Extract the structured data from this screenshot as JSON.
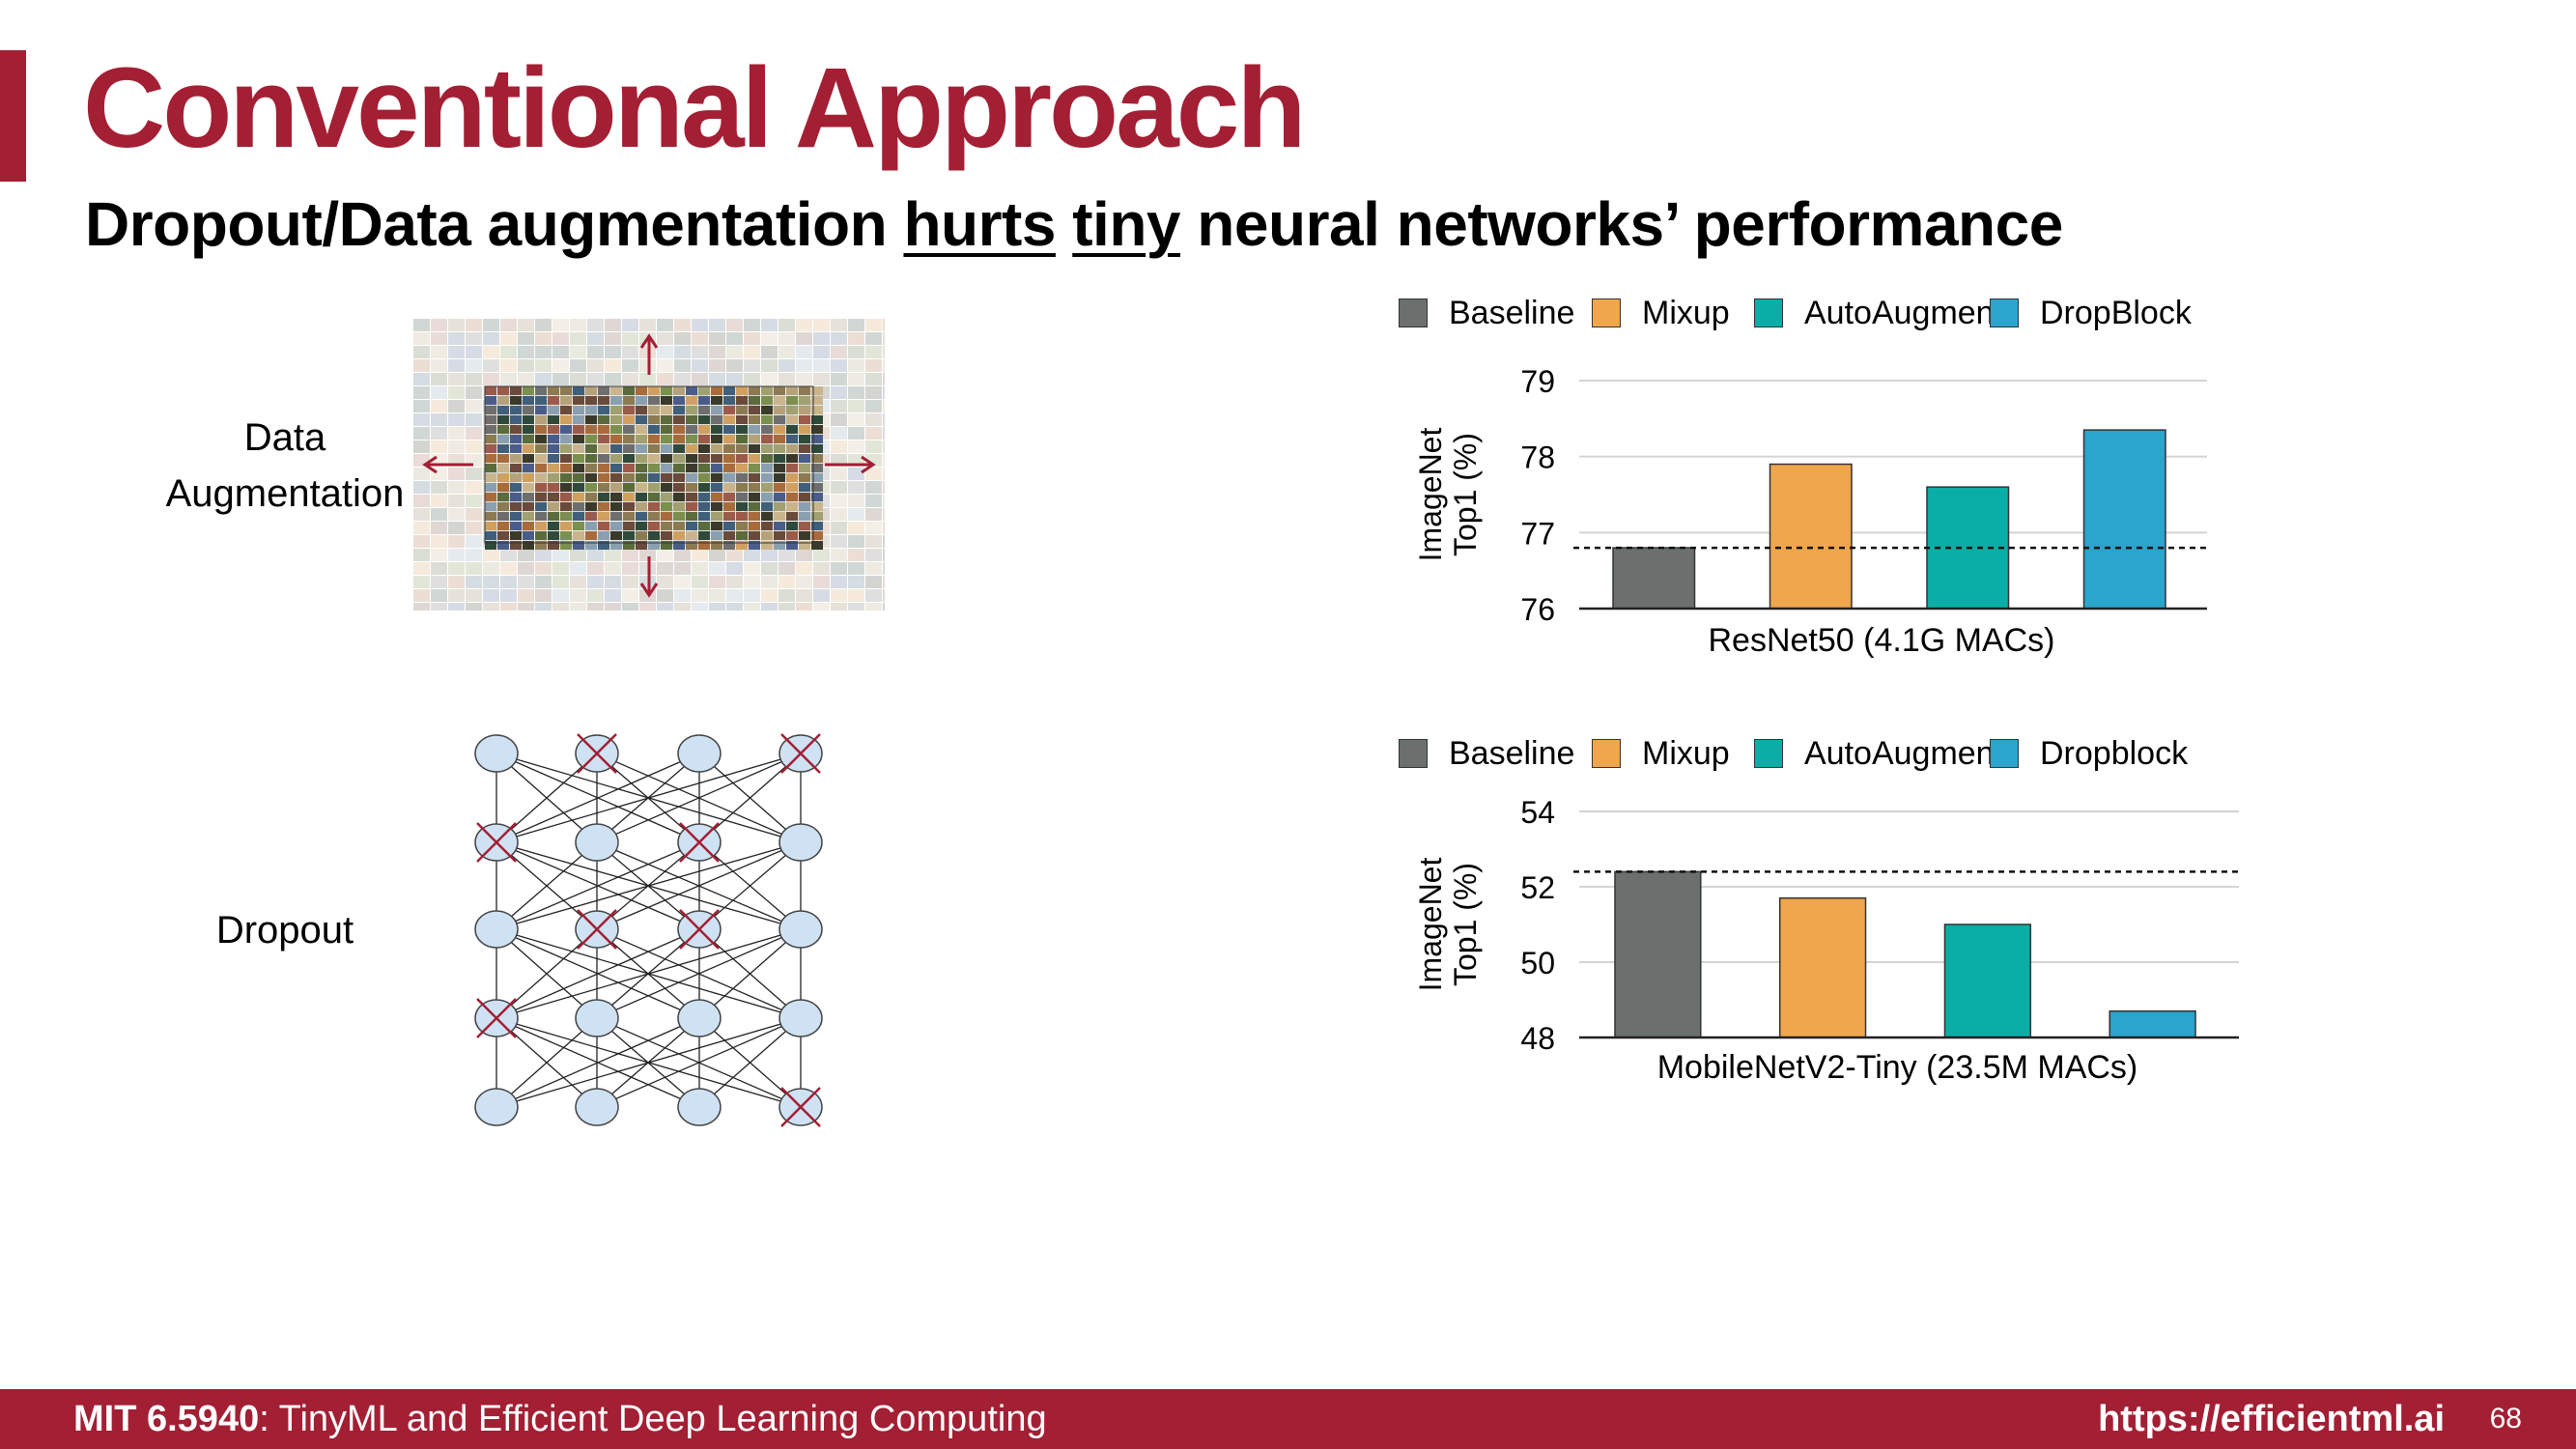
{
  "slide": {
    "title": "Conventional Approach",
    "subtitle_parts": {
      "pre": "Dropout/Data augmentation ",
      "u1": "hurts",
      "mid": " ",
      "u2": "tiny",
      "post": " neural networks’ performance"
    },
    "accent_color": "#a31f34"
  },
  "left": {
    "aug_label_line1": "Data",
    "aug_label_line2": "Augmentation",
    "dropout_label": "Dropout"
  },
  "chart_data": [
    {
      "type": "bar",
      "title": "",
      "xlabel": "ResNet50 (4.1G MACs)",
      "ylabel": "ImageNet Top1 (%)",
      "ylim": [
        76,
        79
      ],
      "yticks": [
        76,
        77,
        78,
        79
      ],
      "categories": [
        "Baseline",
        "Mixup",
        "AutoAugment",
        "DropBlock"
      ],
      "values": [
        76.8,
        77.9,
        77.6,
        78.35
      ],
      "colors": [
        "#6b706e",
        "#f0a64c",
        "#0aaea6",
        "#2ba4ce"
      ],
      "baseline_line": 76.8,
      "grid": true,
      "legend_position": "top"
    },
    {
      "type": "bar",
      "title": "",
      "xlabel": "MobileNetV2-Tiny (23.5M MACs)",
      "ylabel": "ImageNet Top1 (%)",
      "ylim": [
        48,
        54
      ],
      "yticks": [
        48,
        50,
        52,
        54
      ],
      "categories": [
        "Baseline",
        "Mixup",
        "AutoAugment",
        "Dropblock"
      ],
      "values": [
        52.4,
        51.7,
        51.0,
        48.7
      ],
      "colors": [
        "#6b706e",
        "#f0a64c",
        "#0aaea6",
        "#2ba4ce"
      ],
      "baseline_line": 52.4,
      "grid": true,
      "legend_position": "top"
    }
  ],
  "footer": {
    "course_code": "MIT 6.5940",
    "course_name": ": TinyML and Efficient Deep Learning Computing",
    "url": "https://efficientml.ai",
    "page": "68"
  }
}
